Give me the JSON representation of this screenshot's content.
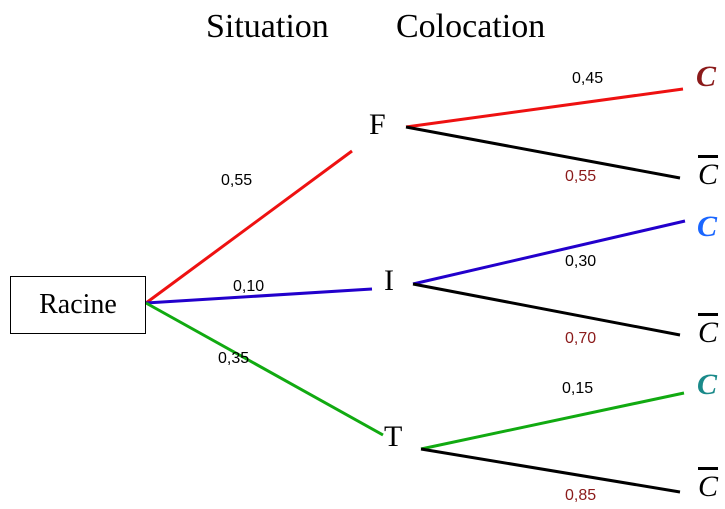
{
  "headers": {
    "level1": "Situation",
    "level2": "Colocation"
  },
  "root": {
    "label": "Racine"
  },
  "colors": {
    "red": "#ee1111",
    "blue": "#2200cc",
    "green": "#11aa11",
    "black": "#000000",
    "dark_red_text": "#8b1a1a",
    "blue_text": "#1a66ff",
    "teal_text": "#1a8a8a"
  },
  "level1": [
    {
      "label": "F",
      "prob": "0,55",
      "color": "red"
    },
    {
      "label": "I",
      "prob": "0,10",
      "color": "blue"
    },
    {
      "label": "T",
      "prob": "0,35",
      "color": "green"
    }
  ],
  "level2": [
    {
      "parent": "F",
      "label": "C",
      "bar": false,
      "prob": "0,45"
    },
    {
      "parent": "F",
      "label": "C",
      "bar": true,
      "prob": "0,55"
    },
    {
      "parent": "I",
      "label": "C",
      "bar": false,
      "prob": "0,30"
    },
    {
      "parent": "I",
      "label": "C",
      "bar": true,
      "prob": "0,70"
    },
    {
      "parent": "T",
      "label": "C",
      "bar": false,
      "prob": "0,15"
    },
    {
      "parent": "T",
      "label": "C",
      "bar": true,
      "prob": "0,85"
    }
  ]
}
